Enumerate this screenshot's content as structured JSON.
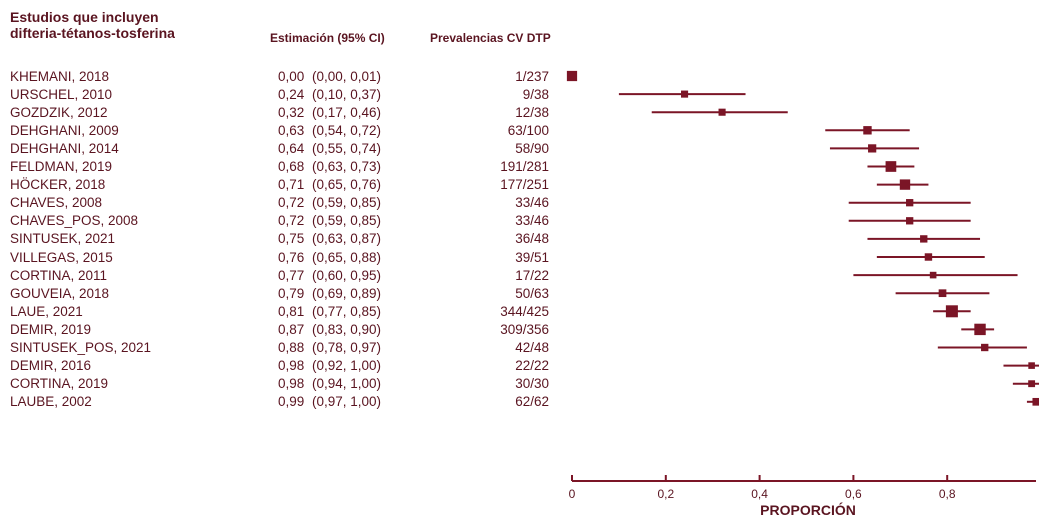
{
  "header": {
    "title_line1": "Estudios que incluyen",
    "title_line2": "difteria-tétanos-tosferina",
    "estimate_header": "Estimación (95% CI)",
    "prevalence_header": "Prevalencias CV DTP"
  },
  "colors": {
    "mark": "#7b1526",
    "text": "#5a1420"
  },
  "chart_data": {
    "type": "forest",
    "xlabel": "PROPORCIÓN",
    "xlim": [
      0,
      1
    ],
    "xticks": [
      {
        "value": 0,
        "label": "0"
      },
      {
        "value": 0.2,
        "label": "0,2"
      },
      {
        "value": 0.4,
        "label": "0,4"
      },
      {
        "value": 0.6,
        "label": "0,6"
      },
      {
        "value": 0.8,
        "label": "0,8"
      }
    ],
    "rows": [
      {
        "study": "KHEMANI, 2018",
        "est": 0.0,
        "lo": 0.0,
        "hi": 0.01,
        "est_label": "0,00",
        "ci_label": "(0,00,  0,01)",
        "prev": "1/237",
        "weight": 237
      },
      {
        "study": "URSCHEL, 2010",
        "est": 0.24,
        "lo": 0.1,
        "hi": 0.37,
        "est_label": "0,24",
        "ci_label": "(0,10,  0,37)",
        "prev": "9/38",
        "weight": 38
      },
      {
        "study": "GOZDZIK, 2012",
        "est": 0.32,
        "lo": 0.17,
        "hi": 0.46,
        "est_label": "0,32",
        "ci_label": "(0,17,  0,46)",
        "prev": "12/38",
        "weight": 38
      },
      {
        "study": "DEHGHANI, 2009",
        "est": 0.63,
        "lo": 0.54,
        "hi": 0.72,
        "est_label": "0,63",
        "ci_label": "(0,54,  0,72)",
        "prev": "63/100",
        "weight": 100
      },
      {
        "study": "DEHGHANI, 2014",
        "est": 0.64,
        "lo": 0.55,
        "hi": 0.74,
        "est_label": "0,64",
        "ci_label": "(0,55,  0,74)",
        "prev": "58/90",
        "weight": 90
      },
      {
        "study": "FELDMAN, 2019",
        "est": 0.68,
        "lo": 0.63,
        "hi": 0.73,
        "est_label": "0,68",
        "ci_label": "(0,63,  0,73)",
        "prev": "191/281",
        "weight": 281
      },
      {
        "study": "HÖCKER, 2018",
        "est": 0.71,
        "lo": 0.65,
        "hi": 0.76,
        "est_label": "0,71",
        "ci_label": "(0,65,  0,76)",
        "prev": "177/251",
        "weight": 251
      },
      {
        "study": "CHAVES, 2008",
        "est": 0.72,
        "lo": 0.59,
        "hi": 0.85,
        "est_label": "0,72",
        "ci_label": "(0,59,  0,85)",
        "prev": "33/46",
        "weight": 46
      },
      {
        "study": "CHAVES_POS, 2008",
        "est": 0.72,
        "lo": 0.59,
        "hi": 0.85,
        "est_label": "0,72",
        "ci_label": "(0,59,  0,85)",
        "prev": "33/46",
        "weight": 46
      },
      {
        "study": "SINTUSEK, 2021",
        "est": 0.75,
        "lo": 0.63,
        "hi": 0.87,
        "est_label": "0,75",
        "ci_label": "(0,63,  0,87)",
        "prev": "36/48",
        "weight": 48
      },
      {
        "study": "VILLEGAS, 2015",
        "est": 0.76,
        "lo": 0.65,
        "hi": 0.88,
        "est_label": "0,76",
        "ci_label": "(0,65,  0,88)",
        "prev": "39/51",
        "weight": 51
      },
      {
        "study": "CORTINA, 2011",
        "est": 0.77,
        "lo": 0.6,
        "hi": 0.95,
        "est_label": "0,77",
        "ci_label": "(0,60,  0,95)",
        "prev": "17/22",
        "weight": 22
      },
      {
        "study": "GOUVEIA, 2018",
        "est": 0.79,
        "lo": 0.69,
        "hi": 0.89,
        "est_label": "0,79",
        "ci_label": "(0,69,  0,89)",
        "prev": "50/63",
        "weight": 63
      },
      {
        "study": "LAUE, 2021",
        "est": 0.81,
        "lo": 0.77,
        "hi": 0.85,
        "est_label": "0,81",
        "ci_label": "(0,77,  0,85)",
        "prev": "344/425",
        "weight": 425
      },
      {
        "study": "DEMIR, 2019",
        "est": 0.87,
        "lo": 0.83,
        "hi": 0.9,
        "est_label": "0,87",
        "ci_label": "(0,83,  0,90)",
        "prev": "309/356",
        "weight": 356
      },
      {
        "study": "SINTUSEK_POS, 2021",
        "est": 0.88,
        "lo": 0.78,
        "hi": 0.97,
        "est_label": "0,88",
        "ci_label": "(0,78,  0,97)",
        "prev": "42/48",
        "weight": 48
      },
      {
        "study": "DEMIR, 2016",
        "est": 0.98,
        "lo": 0.92,
        "hi": 1.0,
        "est_label": "0,98",
        "ci_label": "(0,92,  1,00)",
        "prev": "22/22",
        "weight": 22
      },
      {
        "study": "CORTINA, 2019",
        "est": 0.98,
        "lo": 0.94,
        "hi": 1.0,
        "est_label": "0,98",
        "ci_label": "(0,94,  1,00)",
        "prev": "30/30",
        "weight": 30
      },
      {
        "study": "LAUBE, 2002",
        "est": 0.99,
        "lo": 0.97,
        "hi": 1.0,
        "est_label": "0,99",
        "ci_label": "(0,97,  1,00)",
        "prev": "62/62",
        "weight": 62
      }
    ]
  }
}
